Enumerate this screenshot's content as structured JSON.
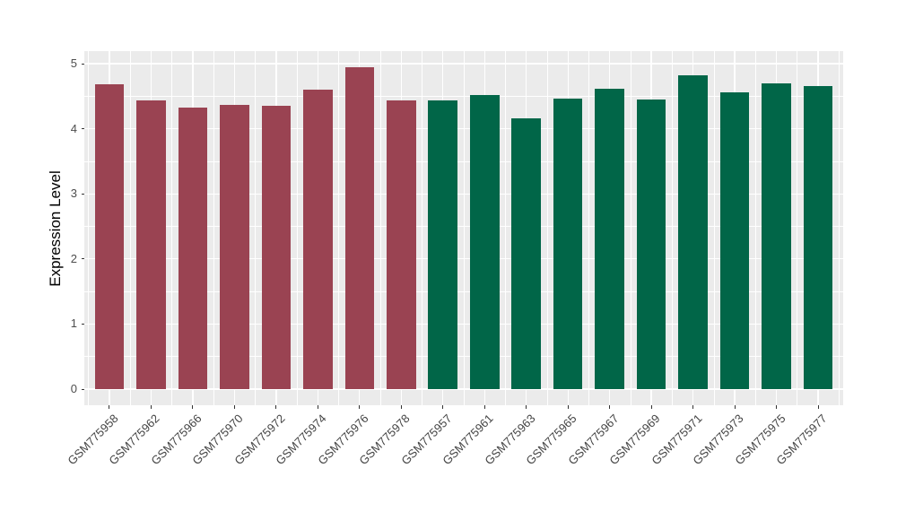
{
  "chart_data": {
    "type": "bar",
    "title": "",
    "xlabel": "",
    "ylabel": "Expression Level",
    "ylim": [
      0,
      5.2
    ],
    "yticks": [
      0,
      1,
      2,
      3,
      4,
      5
    ],
    "grid": "white major and minor gridlines on grey panel",
    "legend_position": "none",
    "panel_background": "#ebebeb",
    "categories": [
      "GSM775958",
      "GSM775962",
      "GSM775966",
      "GSM775970",
      "GSM775972",
      "GSM775974",
      "GSM775976",
      "GSM775978",
      "GSM775957",
      "GSM775961",
      "GSM775963",
      "GSM775965",
      "GSM775967",
      "GSM775969",
      "GSM775971",
      "GSM775973",
      "GSM775975",
      "GSM775977"
    ],
    "values": [
      4.69,
      4.44,
      4.33,
      4.37,
      4.35,
      4.6,
      4.95,
      4.44,
      4.43,
      4.52,
      4.16,
      4.46,
      4.61,
      4.45,
      4.82,
      4.56,
      4.7,
      4.66
    ],
    "groups": [
      "group1",
      "group1",
      "group1",
      "group1",
      "group1",
      "group1",
      "group1",
      "group1",
      "group2",
      "group2",
      "group2",
      "group2",
      "group2",
      "group2",
      "group2",
      "group2",
      "group2",
      "group2"
    ],
    "group_colors": {
      "group1": "#9a4352",
      "group2": "#016648"
    }
  }
}
